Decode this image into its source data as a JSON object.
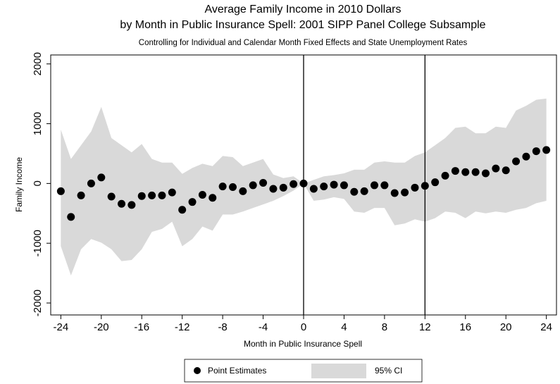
{
  "chart_data": {
    "type": "scatter-band",
    "title": "Average Family Income in 2010 Dollars",
    "subtitle": "by Month in Public Insurance Spell: 2001 SIPP Panel College Subsample",
    "note": "Controlling for Individual and Calendar Month Fixed Effects and State Unemployment Rates",
    "x_label": "Month in Public Insurance Spell",
    "y_label": "Family Income",
    "x": [
      -24,
      -23,
      -22,
      -21,
      -20,
      -19,
      -18,
      -17,
      -16,
      -15,
      -14,
      -13,
      -12,
      -11,
      -10,
      -9,
      -8,
      -7,
      -6,
      -5,
      -4,
      -3,
      -2,
      -1,
      0,
      1,
      2,
      3,
      4,
      5,
      6,
      7,
      8,
      9,
      10,
      11,
      12,
      13,
      14,
      15,
      16,
      17,
      18,
      19,
      20,
      21,
      22,
      23,
      24
    ],
    "series": [
      {
        "name": "Point Estimates",
        "color": "#000000",
        "values": [
          -130,
          -560,
          -200,
          0,
          100,
          -220,
          -340,
          -360,
          -210,
          -200,
          -200,
          -150,
          -440,
          -310,
          -190,
          -240,
          -50,
          -60,
          -130,
          -30,
          10,
          -90,
          -70,
          -10,
          0,
          -90,
          -50,
          -20,
          -30,
          -140,
          -130,
          -30,
          -30,
          -160,
          -150,
          -70,
          -40,
          20,
          130,
          210,
          190,
          190,
          170,
          250,
          220,
          370,
          450,
          540,
          560
        ]
      },
      {
        "name": "95% CI",
        "color": "#d9d9d9",
        "upper": [
          900,
          410,
          640,
          870,
          1280,
          760,
          640,
          520,
          660,
          410,
          350,
          350,
          160,
          260,
          330,
          290,
          460,
          440,
          290,
          350,
          410,
          150,
          90,
          120,
          0,
          60,
          120,
          140,
          170,
          230,
          230,
          350,
          370,
          350,
          350,
          460,
          520,
          640,
          760,
          930,
          950,
          840,
          840,
          950,
          930,
          1220,
          1300,
          1400,
          1420
        ],
        "lower": [
          -1050,
          -1540,
          -1100,
          -930,
          -990,
          -1100,
          -1300,
          -1280,
          -1100,
          -810,
          -760,
          -640,
          -1050,
          -930,
          -720,
          -790,
          -520,
          -520,
          -470,
          -410,
          -350,
          -290,
          -210,
          -120,
          0,
          -290,
          -270,
          -230,
          -260,
          -470,
          -490,
          -410,
          -410,
          -700,
          -670,
          -600,
          -640,
          -580,
          -470,
          -490,
          -580,
          -470,
          -500,
          -470,
          -490,
          -440,
          -410,
          -330,
          -290
        ]
      }
    ],
    "vlines": [
      0,
      12
    ],
    "xlim": [
      -25,
      25
    ],
    "ylim": [
      -2200,
      2150
    ],
    "xticks": [
      -24,
      -20,
      -16,
      -12,
      -8,
      -4,
      0,
      4,
      8,
      12,
      16,
      20,
      24
    ],
    "yticks": [
      -2000,
      -1000,
      0,
      1000,
      2000
    ],
    "legend": "bottom"
  }
}
